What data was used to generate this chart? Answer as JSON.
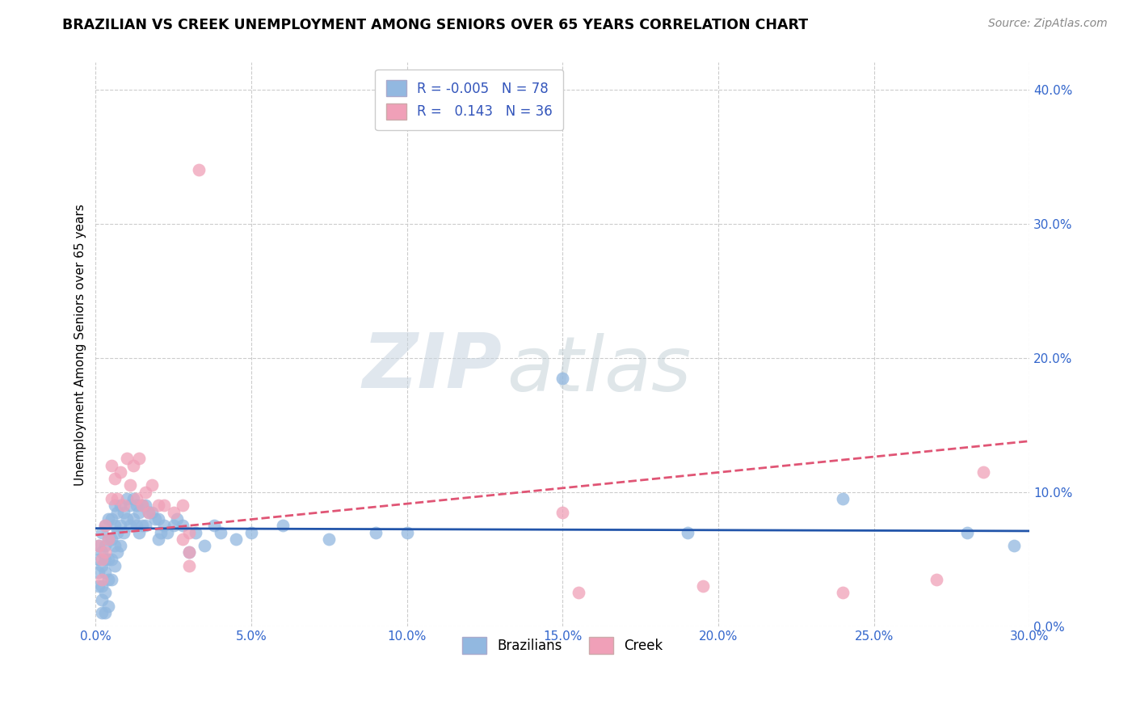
{
  "title": "BRAZILIAN VS CREEK UNEMPLOYMENT AMONG SENIORS OVER 65 YEARS CORRELATION CHART",
  "source": "Source: ZipAtlas.com",
  "ylabel": "Unemployment Among Seniors over 65 years",
  "xlim": [
    0.0,
    0.3
  ],
  "ylim": [
    0.0,
    0.42
  ],
  "xticks": [
    0.0,
    0.05,
    0.1,
    0.15,
    0.2,
    0.25,
    0.3
  ],
  "yticks": [
    0.0,
    0.1,
    0.2,
    0.3,
    0.4
  ],
  "ytick_labels_right": [
    "0.0%",
    "10.0%",
    "20.0%",
    "30.0%",
    "40.0%"
  ],
  "xtick_labels": [
    "0.0%",
    "5.0%",
    "10.0%",
    "15.0%",
    "20.0%",
    "25.0%",
    "30.0%"
  ],
  "blue_color": "#92b8e0",
  "pink_color": "#f0a0b8",
  "blue_line_color": "#2255aa",
  "pink_line_color": "#e05575",
  "legend_blue_R": "-0.005",
  "legend_blue_N": "78",
  "legend_pink_R": "0.143",
  "legend_pink_N": "36",
  "legend_label_blue": "Brazilians",
  "legend_label_pink": "Creek",
  "watermark_zip": "ZIP",
  "watermark_atlas": "atlas",
  "blue_x": [
    0.001,
    0.001,
    0.001,
    0.001,
    0.002,
    0.002,
    0.002,
    0.002,
    0.002,
    0.002,
    0.003,
    0.003,
    0.003,
    0.003,
    0.003,
    0.003,
    0.004,
    0.004,
    0.004,
    0.004,
    0.004,
    0.005,
    0.005,
    0.005,
    0.005,
    0.006,
    0.006,
    0.006,
    0.006,
    0.007,
    0.007,
    0.007,
    0.008,
    0.008,
    0.008,
    0.009,
    0.009,
    0.01,
    0.01,
    0.011,
    0.011,
    0.012,
    0.012,
    0.013,
    0.013,
    0.014,
    0.014,
    0.015,
    0.015,
    0.016,
    0.016,
    0.017,
    0.018,
    0.019,
    0.02,
    0.02,
    0.021,
    0.022,
    0.023,
    0.025,
    0.026,
    0.028,
    0.03,
    0.032,
    0.035,
    0.038,
    0.04,
    0.045,
    0.05,
    0.06,
    0.075,
    0.09,
    0.1,
    0.15,
    0.19,
    0.24,
    0.28,
    0.295
  ],
  "blue_y": [
    0.05,
    0.06,
    0.04,
    0.03,
    0.07,
    0.055,
    0.045,
    0.03,
    0.02,
    0.01,
    0.075,
    0.06,
    0.05,
    0.04,
    0.025,
    0.01,
    0.08,
    0.065,
    0.05,
    0.035,
    0.015,
    0.08,
    0.065,
    0.05,
    0.035,
    0.09,
    0.075,
    0.06,
    0.045,
    0.085,
    0.07,
    0.055,
    0.09,
    0.075,
    0.06,
    0.085,
    0.07,
    0.095,
    0.08,
    0.09,
    0.075,
    0.095,
    0.08,
    0.09,
    0.075,
    0.085,
    0.07,
    0.09,
    0.075,
    0.09,
    0.075,
    0.085,
    0.085,
    0.08,
    0.08,
    0.065,
    0.07,
    0.075,
    0.07,
    0.075,
    0.08,
    0.075,
    0.055,
    0.07,
    0.06,
    0.075,
    0.07,
    0.065,
    0.07,
    0.075,
    0.065,
    0.07,
    0.07,
    0.185,
    0.07,
    0.095,
    0.07,
    0.06
  ],
  "pink_x": [
    0.001,
    0.002,
    0.002,
    0.003,
    0.003,
    0.004,
    0.005,
    0.005,
    0.006,
    0.007,
    0.008,
    0.009,
    0.01,
    0.011,
    0.012,
    0.013,
    0.014,
    0.015,
    0.016,
    0.017,
    0.018,
    0.02,
    0.022,
    0.025,
    0.028,
    0.03,
    0.033,
    0.15,
    0.195,
    0.24,
    0.27,
    0.285,
    0.028,
    0.03,
    0.03,
    0.155
  ],
  "pink_y": [
    0.06,
    0.05,
    0.035,
    0.075,
    0.055,
    0.065,
    0.12,
    0.095,
    0.11,
    0.095,
    0.115,
    0.09,
    0.125,
    0.105,
    0.12,
    0.095,
    0.125,
    0.09,
    0.1,
    0.085,
    0.105,
    0.09,
    0.09,
    0.085,
    0.09,
    0.07,
    0.34,
    0.085,
    0.03,
    0.025,
    0.035,
    0.115,
    0.065,
    0.055,
    0.045,
    0.025
  ],
  "blue_line_x": [
    0.0,
    0.3
  ],
  "blue_line_y": [
    0.073,
    0.071
  ],
  "pink_line_x": [
    0.0,
    0.3
  ],
  "pink_line_y": [
    0.068,
    0.138
  ]
}
